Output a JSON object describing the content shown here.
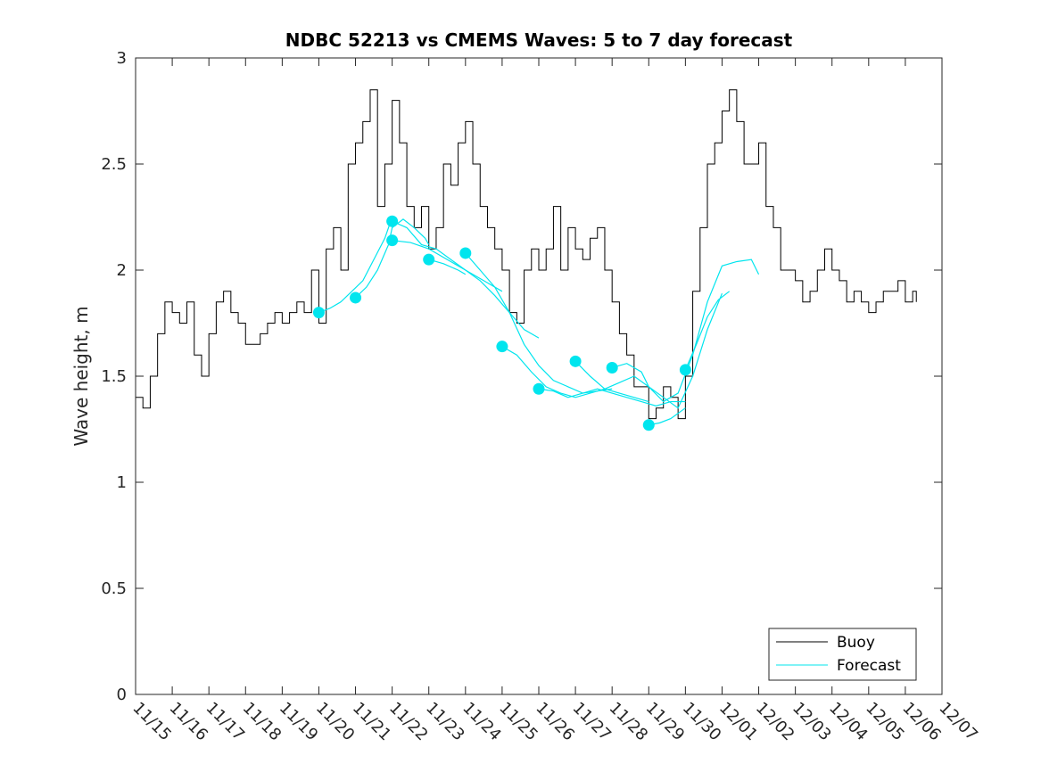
{
  "chart_data": {
    "type": "line",
    "title": "NDBC 52213 vs CMEMS Waves: 5 to 7 day forecast",
    "xlabel": "",
    "ylabel": "Wave height, m",
    "x_unit": "days since 11/15",
    "xlim": [
      0,
      22
    ],
    "ylim": [
      0,
      3
    ],
    "yticks": [
      0,
      0.5,
      1,
      1.5,
      2,
      2.5,
      3
    ],
    "ytick_labels": [
      "0",
      "0.5",
      "1",
      "1.5",
      "2",
      "2.5",
      "3"
    ],
    "xticks": [
      0,
      1,
      2,
      3,
      4,
      5,
      6,
      7,
      8,
      9,
      10,
      11,
      12,
      13,
      14,
      15,
      16,
      17,
      18,
      19,
      20,
      21,
      22
    ],
    "xtick_labels": [
      "11/15",
      "11/16",
      "11/17",
      "11/18",
      "11/19",
      "11/20",
      "11/21",
      "11/22",
      "11/23",
      "11/24",
      "11/25",
      "11/26",
      "11/27",
      "11/28",
      "11/29",
      "11/30",
      "12/01",
      "12/02",
      "12/03",
      "12/04",
      "12/05",
      "12/06",
      "12/07"
    ],
    "legend": {
      "location": "bottom-right",
      "entries": [
        "Buoy",
        "Forecast"
      ]
    },
    "series": [
      {
        "name": "Buoy",
        "color": "#000000",
        "x": [
          0,
          0.2,
          0.4,
          0.6,
          0.8,
          1.0,
          1.2,
          1.4,
          1.6,
          1.8,
          2.0,
          2.2,
          2.4,
          2.6,
          2.8,
          3.0,
          3.2,
          3.4,
          3.6,
          3.8,
          4.0,
          4.2,
          4.4,
          4.6,
          4.8,
          5.0,
          5.2,
          5.4,
          5.6,
          5.8,
          6.0,
          6.2,
          6.4,
          6.6,
          6.8,
          7.0,
          7.2,
          7.4,
          7.6,
          7.8,
          8.0,
          8.2,
          8.4,
          8.6,
          8.8,
          9.0,
          9.2,
          9.4,
          9.6,
          9.8,
          10.0,
          10.2,
          10.4,
          10.6,
          10.8,
          11.0,
          11.2,
          11.4,
          11.6,
          11.8,
          12.0,
          12.2,
          12.4,
          12.6,
          12.8,
          13.0,
          13.2,
          13.4,
          13.6,
          13.8,
          14.0,
          14.2,
          14.4,
          14.6,
          14.8,
          15.0,
          15.2,
          15.4,
          15.6,
          15.8,
          16.0,
          16.2,
          16.4,
          16.6,
          16.8,
          17.0,
          17.2,
          17.4,
          17.6,
          17.8,
          18.0,
          18.2,
          18.4,
          18.6,
          18.8,
          19.0,
          19.2,
          19.4,
          19.6,
          19.8,
          20.0,
          20.2,
          20.4,
          20.6,
          20.8,
          21.0,
          21.2,
          21.3
        ],
        "values": [
          1.4,
          1.35,
          1.5,
          1.7,
          1.85,
          1.8,
          1.75,
          1.85,
          1.6,
          1.5,
          1.7,
          1.85,
          1.9,
          1.8,
          1.75,
          1.65,
          1.65,
          1.7,
          1.75,
          1.8,
          1.75,
          1.8,
          1.85,
          1.8,
          2.0,
          1.75,
          2.1,
          2.2,
          2.0,
          2.5,
          2.6,
          2.7,
          2.85,
          2.3,
          2.5,
          2.8,
          2.6,
          2.3,
          2.2,
          2.3,
          2.1,
          2.2,
          2.5,
          2.4,
          2.6,
          2.7,
          2.5,
          2.3,
          2.2,
          2.1,
          2.0,
          1.8,
          1.75,
          2.0,
          2.1,
          2.0,
          2.1,
          2.3,
          2.0,
          2.2,
          2.1,
          2.05,
          2.15,
          2.2,
          2.0,
          1.85,
          1.7,
          1.6,
          1.45,
          1.45,
          1.3,
          1.35,
          1.45,
          1.4,
          1.3,
          1.5,
          1.9,
          2.2,
          2.5,
          2.6,
          2.75,
          2.85,
          2.7,
          2.5,
          2.5,
          2.6,
          2.3,
          2.2,
          2.0,
          2.0,
          1.95,
          1.85,
          1.9,
          2.0,
          2.1,
          2.0,
          1.95,
          1.85,
          1.9,
          1.85,
          1.8,
          1.85,
          1.9,
          1.9,
          1.95,
          1.85,
          1.9,
          1.85
        ]
      },
      {
        "name": "Forecast",
        "color": "#00e5ee",
        "runs": [
          {
            "x": [
              5.0,
              5.3,
              5.6,
              5.9,
              6.2,
              6.5,
              6.8,
              7.0
            ],
            "values": [
              1.8,
              1.82,
              1.85,
              1.9,
              1.95,
              2.05,
              2.15,
              2.25
            ]
          },
          {
            "x": [
              6.0,
              6.3,
              6.6,
              6.9,
              7.0,
              7.3,
              7.6,
              7.9,
              8.0
            ],
            "values": [
              1.87,
              1.92,
              2.0,
              2.12,
              2.2,
              2.24,
              2.2,
              2.15,
              2.12
            ]
          },
          {
            "x": [
              7.0,
              7.4,
              7.8,
              8.2,
              8.6,
              9.0,
              9.4,
              9.8,
              10.2,
              10.6,
              11.0
            ],
            "values": [
              2.23,
              2.2,
              2.12,
              2.1,
              2.05,
              2.0,
              1.95,
              1.88,
              1.8,
              1.72,
              1.68
            ]
          },
          {
            "x": [
              7.0,
              7.5,
              8.0,
              8.5,
              9.0,
              9.5,
              10.0
            ],
            "values": [
              2.14,
              2.13,
              2.1,
              2.05,
              2.0,
              1.95,
              1.9
            ]
          },
          {
            "x": [
              8.0,
              8.4,
              8.8,
              9.0
            ],
            "values": [
              2.05,
              2.03,
              2.0,
              1.98
            ]
          },
          {
            "x": [
              9.0,
              9.4,
              9.8,
              10.2,
              10.6,
              11.0,
              11.4,
              11.8,
              12.2,
              12.6,
              13.0
            ],
            "values": [
              2.08,
              2.0,
              1.92,
              1.8,
              1.65,
              1.55,
              1.48,
              1.45,
              1.42,
              1.43,
              1.44
            ]
          },
          {
            "x": [
              10.0,
              10.4,
              10.8,
              11.2,
              11.6,
              12.0,
              12.4,
              12.8,
              13.2,
              13.6,
              14.0
            ],
            "values": [
              1.64,
              1.6,
              1.52,
              1.45,
              1.42,
              1.4,
              1.42,
              1.44,
              1.42,
              1.4,
              1.38
            ]
          },
          {
            "x": [
              11.0,
              11.4,
              11.8,
              12.2,
              12.6,
              13.0,
              13.4,
              13.8,
              14.2,
              14.6,
              15.0
            ],
            "values": [
              1.44,
              1.43,
              1.4,
              1.42,
              1.44,
              1.42,
              1.4,
              1.38,
              1.36,
              1.38,
              1.38
            ]
          },
          {
            "x": [
              12.0,
              12.4,
              12.8,
              13.2,
              13.6,
              14.0,
              14.4,
              14.8,
              15.2,
              15.6,
              16.0
            ],
            "values": [
              1.57,
              1.5,
              1.44,
              1.47,
              1.5,
              1.45,
              1.4,
              1.35,
              1.5,
              1.72,
              1.89
            ]
          },
          {
            "x": [
              13.0,
              13.4,
              13.8,
              14.0,
              14.4,
              14.8,
              15.2,
              15.6,
              16.0,
              16.4,
              16.8,
              17.0
            ],
            "values": [
              1.54,
              1.56,
              1.52,
              1.45,
              1.38,
              1.42,
              1.6,
              1.85,
              2.02,
              2.04,
              2.05,
              1.98
            ]
          },
          {
            "x": [
              14.0,
              14.3,
              14.6,
              15.0
            ],
            "values": [
              1.27,
              1.28,
              1.3,
              1.35
            ]
          },
          {
            "x": [
              15.0,
              15.3,
              15.6,
              15.9,
              16.2
            ],
            "values": [
              1.53,
              1.65,
              1.78,
              1.86,
              1.9
            ]
          }
        ],
        "markers": {
          "x": [
            5.0,
            6.0,
            7.0,
            7.0,
            8.0,
            9.0,
            10.0,
            11.0,
            12.0,
            13.0,
            14.0,
            15.0
          ],
          "values": [
            1.8,
            1.87,
            2.23,
            2.14,
            2.05,
            2.08,
            1.64,
            1.44,
            1.57,
            1.54,
            1.27,
            1.53
          ]
        }
      }
    ]
  }
}
